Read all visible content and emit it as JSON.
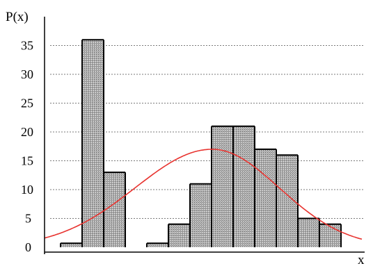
{
  "chart_data": {
    "type": "bar",
    "ylabel": "P(x)",
    "xlabel": "x",
    "ylim": [
      0,
      37
    ],
    "yticks": [
      0,
      5,
      10,
      15,
      20,
      25,
      30,
      35
    ],
    "grid": "horizontal-dotted",
    "bars": [
      {
        "group": 1,
        "value": 0.7
      },
      {
        "group": 1,
        "value": 36
      },
      {
        "group": 1,
        "value": 13
      },
      {
        "group": 2,
        "value": 0.7
      },
      {
        "group": 2,
        "value": 4
      },
      {
        "group": 2,
        "value": 11
      },
      {
        "group": 2,
        "value": 21
      },
      {
        "group": 2,
        "value": 21
      },
      {
        "group": 2,
        "value": 17
      },
      {
        "group": 2,
        "value": 16
      },
      {
        "group": 2,
        "value": 5
      },
      {
        "group": 2,
        "value": 4
      }
    ],
    "curve": {
      "type": "normal",
      "color": "#e8332f",
      "peak": 17,
      "start_value": 1.6,
      "end_value": 1.4
    },
    "colors": {
      "bar_fill": "#a8a8a8",
      "bar_edge": "#000000",
      "grid": "#7a7a7a"
    }
  }
}
